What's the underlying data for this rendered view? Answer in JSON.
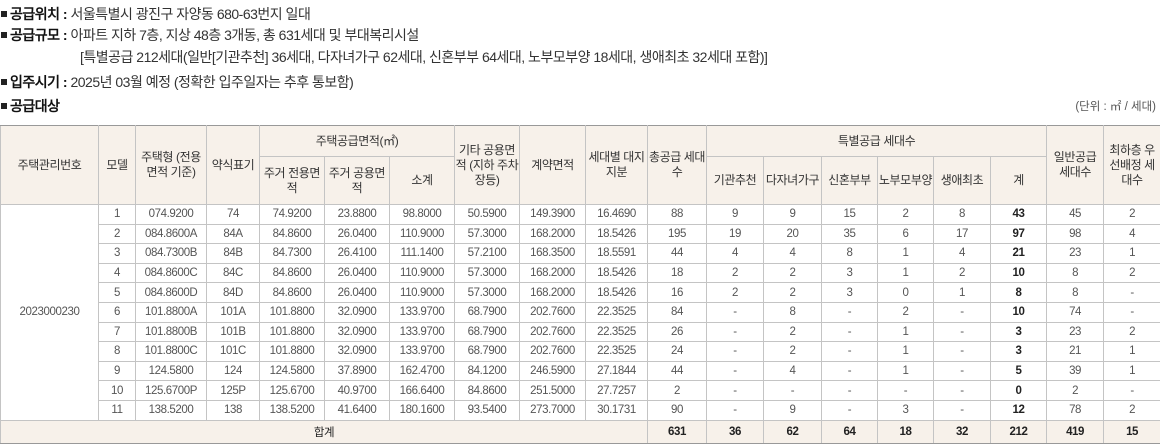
{
  "info": {
    "location_label": "공급위치 :",
    "location": "서울특별시 광진구 자양동 680-63번지 일대",
    "scale_label": "공급규모 :",
    "scale": "아파트 지하 7층, 지상 48층 3개동, 총 631세대 및 부대복리시설",
    "scale_detail": "[특별공급 212세대(일반[기관추천] 36세대, 다자녀가구 62세대, 신혼부부 64세대, 노부모부양 18세대, 생애최초 32세대 포함)]",
    "movein_label": "입주시기 :",
    "movein": "2025년 03월 예정 (정확한 입주일자는 추후 통보함)",
    "target_label": "공급대상",
    "unit": "(단위 : ㎡ / 세대)"
  },
  "headers": {
    "mgmt_no": "주택관리번호",
    "model": "모델",
    "type": "주택형 (전용면적 기준)",
    "abbr": "약식표기",
    "supply_area": "주택공급면적(㎡)",
    "excl": "주거 전용면적",
    "common": "주거 공용면적",
    "subtotal": "소계",
    "other": "기타 공용면적 (지하 주차장등)",
    "contract": "계약면적",
    "land": "세대별 대지지분",
    "total_units": "총공급 세대수",
    "special": "특별공급 세대수",
    "inst": "기관추천",
    "multi": "다자녀가구",
    "newly": "신혼부부",
    "elder": "노부모부양",
    "first": "생애최초",
    "sp_sum": "계",
    "general": "일반공급 세대수",
    "lowest": "최하층 우선배정 세대수"
  },
  "mgmt_no": "2023000230",
  "rows": [
    [
      "1",
      "074.9200",
      "74",
      "74.9200",
      "23.8800",
      "98.8000",
      "50.5900",
      "149.3900",
      "16.4690",
      "88",
      "9",
      "9",
      "15",
      "2",
      "8",
      "43",
      "45",
      "2"
    ],
    [
      "2",
      "084.8600A",
      "84A",
      "84.8600",
      "26.0400",
      "110.9000",
      "57.3000",
      "168.2000",
      "18.5426",
      "195",
      "19",
      "20",
      "35",
      "6",
      "17",
      "97",
      "98",
      "4"
    ],
    [
      "3",
      "084.7300B",
      "84B",
      "84.7300",
      "26.4100",
      "111.1400",
      "57.2100",
      "168.3500",
      "18.5591",
      "44",
      "4",
      "4",
      "8",
      "1",
      "4",
      "21",
      "23",
      "1"
    ],
    [
      "4",
      "084.8600C",
      "84C",
      "84.8600",
      "26.0400",
      "110.9000",
      "57.3000",
      "168.2000",
      "18.5426",
      "18",
      "2",
      "2",
      "3",
      "1",
      "2",
      "10",
      "8",
      "2"
    ],
    [
      "5",
      "084.8600D",
      "84D",
      "84.8600",
      "26.0400",
      "110.9000",
      "57.3000",
      "168.2000",
      "18.5426",
      "16",
      "2",
      "2",
      "3",
      "0",
      "1",
      "8",
      "8",
      "-"
    ],
    [
      "6",
      "101.8800A",
      "101A",
      "101.8800",
      "32.0900",
      "133.9700",
      "68.7900",
      "202.7600",
      "22.3525",
      "84",
      "-",
      "8",
      "-",
      "2",
      "-",
      "10",
      "74",
      "-"
    ],
    [
      "7",
      "101.8800B",
      "101B",
      "101.8800",
      "32.0900",
      "133.9700",
      "68.7900",
      "202.7600",
      "22.3525",
      "26",
      "-",
      "2",
      "-",
      "1",
      "-",
      "3",
      "23",
      "2"
    ],
    [
      "8",
      "101.8800C",
      "101C",
      "101.8800",
      "32.0900",
      "133.9700",
      "68.7900",
      "202.7600",
      "22.3525",
      "24",
      "-",
      "2",
      "-",
      "1",
      "-",
      "3",
      "21",
      "1"
    ],
    [
      "9",
      "124.5800",
      "124",
      "124.5800",
      "37.8900",
      "162.4700",
      "84.1200",
      "246.5900",
      "27.1844",
      "44",
      "-",
      "4",
      "-",
      "1",
      "-",
      "5",
      "39",
      "1"
    ],
    [
      "10",
      "125.6700P",
      "125P",
      "125.6700",
      "40.9700",
      "166.6400",
      "84.8600",
      "251.5000",
      "27.7257",
      "2",
      "-",
      "-",
      "-",
      "-",
      "-",
      "0",
      "2",
      "-"
    ],
    [
      "11",
      "138.5200",
      "138",
      "138.5200",
      "41.6400",
      "180.1600",
      "93.5400",
      "273.7000",
      "30.1731",
      "90",
      "-",
      "9",
      "-",
      "3",
      "-",
      "12",
      "78",
      "2"
    ]
  ],
  "total": {
    "label": "합계",
    "values": [
      "631",
      "36",
      "62",
      "64",
      "18",
      "32",
      "212",
      "419",
      "15"
    ]
  }
}
